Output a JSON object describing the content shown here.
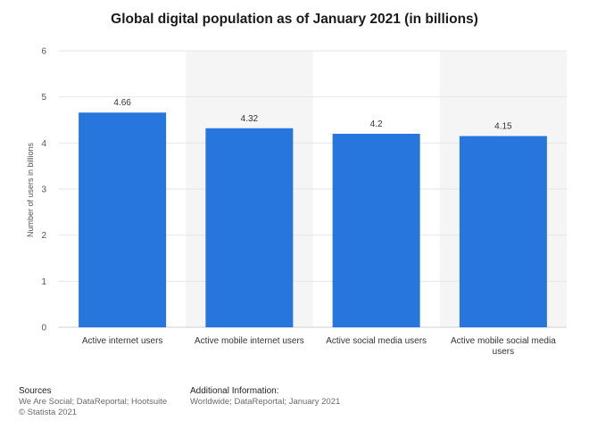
{
  "chart_data": {
    "type": "bar",
    "title": "Global digital population as of January 2021 (in billions)",
    "xlabel": "",
    "ylabel": "Number of users in billions",
    "categories": [
      "Active internet users",
      "Active mobile internet users",
      "Active social media users",
      "Active mobile social media users"
    ],
    "values": [
      4.66,
      4.32,
      4.2,
      4.15
    ],
    "value_labels": [
      "4.66",
      "4.32",
      "4.2",
      "4.15"
    ],
    "ylim": [
      0,
      6
    ],
    "yticks": [
      0,
      1,
      2,
      3,
      4,
      5,
      6
    ],
    "grid": true,
    "bar_color": "#2776dd"
  },
  "footer": {
    "sources_title": "Sources",
    "sources_line1": "We Are Social; DataReportal; Hootsuite",
    "sources_line2": "© Statista 2021",
    "info_title": "Additional Information:",
    "info_line1": "Worldwide; DataReportal; January 2021"
  }
}
